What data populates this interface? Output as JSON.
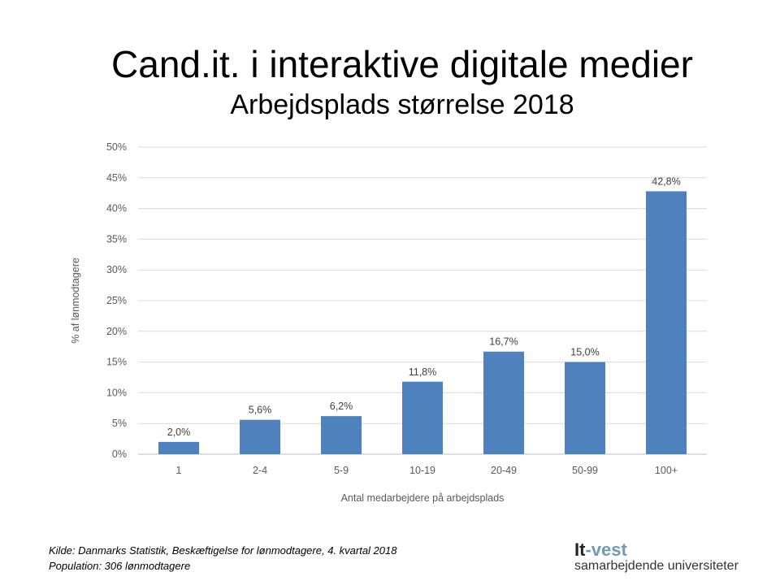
{
  "chart_data": {
    "type": "bar",
    "title": "Cand.it. i interaktive digitale medier",
    "subtitle": "Arbejdsplads størrelse 2018",
    "xlabel": "Antal medarbejdere på arbejdsplads",
    "ylabel": "% af lønmodtagere",
    "categories": [
      "1",
      "2-4",
      "5-9",
      "10-19",
      "20-49",
      "50-99",
      "100+"
    ],
    "values": [
      2.0,
      5.6,
      6.2,
      11.8,
      16.7,
      15.0,
      42.8
    ],
    "data_labels": [
      "2,0%",
      "5,6%",
      "6,2%",
      "11,8%",
      "16,7%",
      "15,0%",
      "42,8%"
    ],
    "yticks": [
      "0%",
      "5%",
      "10%",
      "15%",
      "20%",
      "25%",
      "30%",
      "35%",
      "40%",
      "45%",
      "50%"
    ],
    "ylim": [
      0,
      50
    ],
    "grid": true,
    "bar_color": "#4f81bd"
  },
  "footer": {
    "source": "Kilde: Danmarks Statistik, Beskæftigelse for lønmodtagere, 4. kvartal 2018",
    "population": "Population: 306 lønmodtagere"
  },
  "logo": {
    "it": "It",
    "vest": "-vest",
    "tagline": "samarbejdende universiteter"
  }
}
